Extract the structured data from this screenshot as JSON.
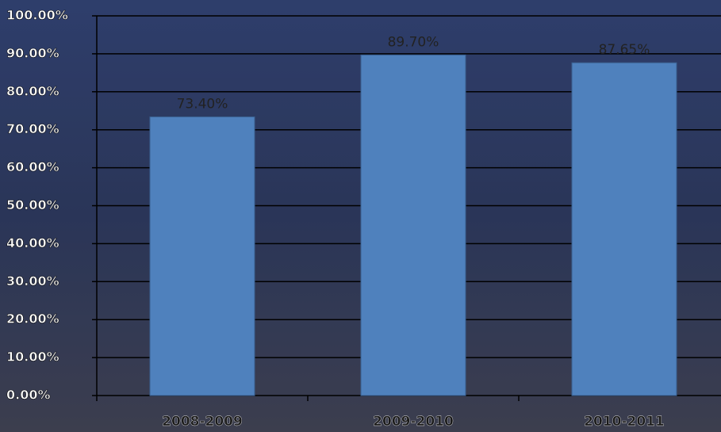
{
  "chart_data": {
    "type": "bar",
    "categories": [
      "2008-2009",
      "2009-2010",
      "2010-2011"
    ],
    "values": [
      73.4,
      89.7,
      87.65
    ],
    "value_labels": [
      "73.40%",
      "89.70%",
      "87.65%"
    ],
    "color": "#4f81bd",
    "ylim": [
      0,
      100
    ],
    "yticks": [
      {
        "value": 0,
        "label": "0.00%"
      },
      {
        "value": 10,
        "label": "10.00%"
      },
      {
        "value": 20,
        "label": "20.00%"
      },
      {
        "value": 30,
        "label": "30.00%"
      },
      {
        "value": 40,
        "label": "40.00%"
      },
      {
        "value": 50,
        "label": "50.00%"
      },
      {
        "value": 60,
        "label": "60.00%"
      },
      {
        "value": 70,
        "label": "70.00%"
      },
      {
        "value": 80,
        "label": "80.00%"
      },
      {
        "value": 90,
        "label": "90.00%"
      },
      {
        "value": 100,
        "label": "100.00%"
      }
    ],
    "grid": true
  }
}
